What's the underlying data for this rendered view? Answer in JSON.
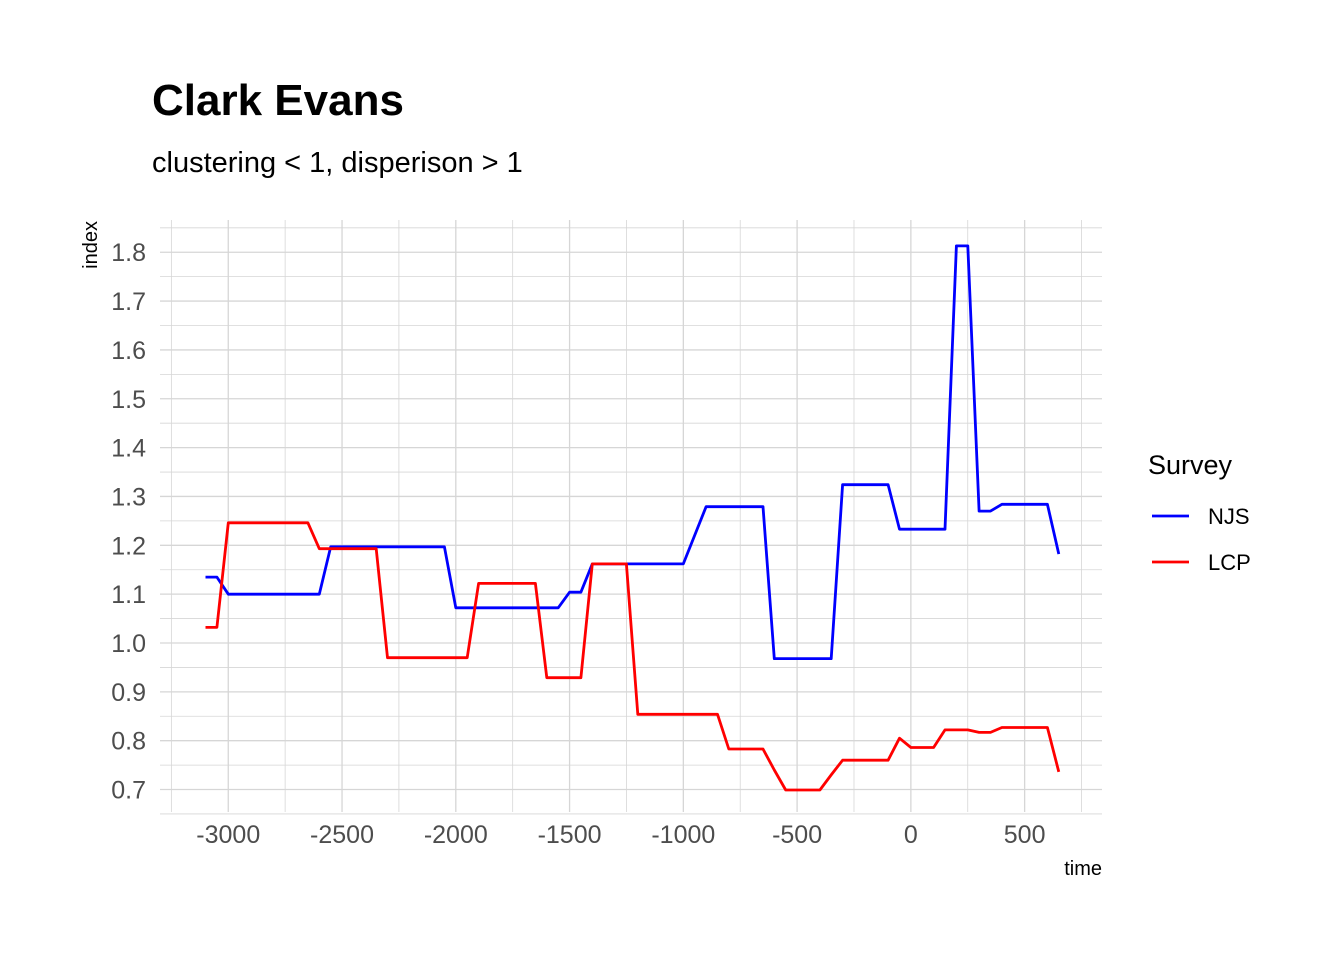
{
  "chart_data": {
    "type": "line",
    "title": "Clark Evans",
    "subtitle": "clustering < 1, disperison > 1",
    "xlabel": "time",
    "ylabel": "index",
    "xlim": [
      -3300,
      840
    ],
    "ylim": [
      0.654,
      1.866
    ],
    "x_ticks": [
      -3000,
      -2500,
      -2000,
      -1500,
      -1000,
      -500,
      0,
      500
    ],
    "x_tick_labels": [
      "-3000",
      "-2500",
      "-2000",
      "-1500",
      "-1000",
      "-500",
      "0",
      "500"
    ],
    "y_ticks": [
      0.7,
      0.8,
      0.9,
      1.0,
      1.1,
      1.2,
      1.3,
      1.4,
      1.5,
      1.6,
      1.7,
      1.8
    ],
    "y_tick_labels": [
      "0.7",
      "0.8",
      "0.9",
      "1.0",
      "1.1",
      "1.2",
      "1.3",
      "1.4",
      "1.5",
      "1.6",
      "1.7",
      "1.8"
    ],
    "grid": true,
    "legend": {
      "title": "Survey",
      "position": "right"
    },
    "series": [
      {
        "name": "NJS",
        "color": "#0000ff",
        "points": [
          [
            -3100,
            1.135
          ],
          [
            -3050,
            1.135
          ],
          [
            -3000,
            1.1
          ],
          [
            -2600,
            1.1
          ],
          [
            -2550,
            1.197
          ],
          [
            -2050,
            1.197
          ],
          [
            -2000,
            1.072
          ],
          [
            -1550,
            1.072
          ],
          [
            -1500,
            1.104
          ],
          [
            -1450,
            1.104
          ],
          [
            -1400,
            1.162
          ],
          [
            -1000,
            1.162
          ],
          [
            -900,
            1.279
          ],
          [
            -650,
            1.279
          ],
          [
            -600,
            0.968
          ],
          [
            -350,
            0.968
          ],
          [
            -300,
            1.324
          ],
          [
            -100,
            1.324
          ],
          [
            -50,
            1.233
          ],
          [
            150,
            1.233
          ],
          [
            200,
            1.813
          ],
          [
            250,
            1.813
          ],
          [
            300,
            1.27
          ],
          [
            350,
            1.27
          ],
          [
            400,
            1.284
          ],
          [
            600,
            1.284
          ],
          [
            650,
            1.182
          ]
        ]
      },
      {
        "name": "LCP",
        "color": "#ff0000",
        "points": [
          [
            -3100,
            1.032
          ],
          [
            -3050,
            1.032
          ],
          [
            -3000,
            1.246
          ],
          [
            -2650,
            1.246
          ],
          [
            -2600,
            1.193
          ],
          [
            -2350,
            1.193
          ],
          [
            -2300,
            0.97
          ],
          [
            -1950,
            0.97
          ],
          [
            -1900,
            1.122
          ],
          [
            -1650,
            1.122
          ],
          [
            -1600,
            0.929
          ],
          [
            -1450,
            0.929
          ],
          [
            -1400,
            1.162
          ],
          [
            -1250,
            1.162
          ],
          [
            -1200,
            0.854
          ],
          [
            -850,
            0.854
          ],
          [
            -800,
            0.783
          ],
          [
            -650,
            0.783
          ],
          [
            -600,
            0.74
          ],
          [
            -550,
            0.699
          ],
          [
            -400,
            0.699
          ],
          [
            -350,
            0.73
          ],
          [
            -300,
            0.76
          ],
          [
            -100,
            0.76
          ],
          [
            -50,
            0.805
          ],
          [
            0,
            0.786
          ],
          [
            100,
            0.786
          ],
          [
            150,
            0.822
          ],
          [
            250,
            0.822
          ],
          [
            300,
            0.817
          ],
          [
            350,
            0.817
          ],
          [
            400,
            0.827
          ],
          [
            600,
            0.827
          ],
          [
            650,
            0.736
          ]
        ]
      }
    ]
  }
}
